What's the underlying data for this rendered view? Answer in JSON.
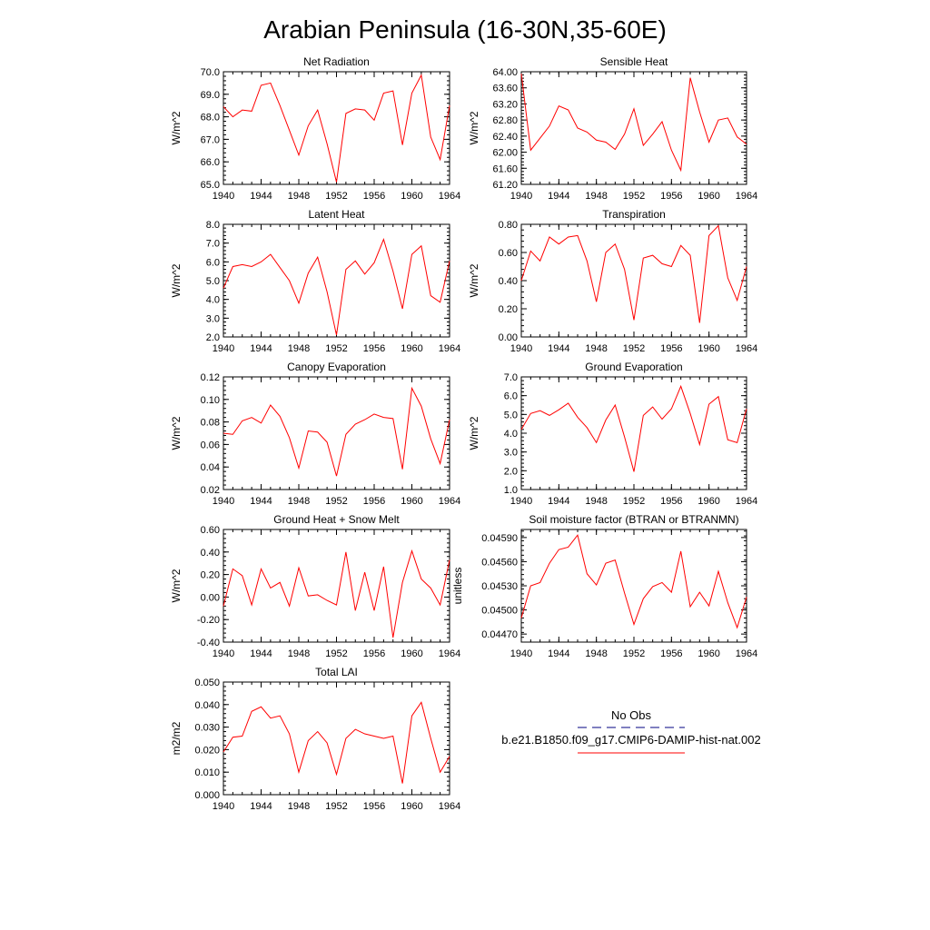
{
  "title": "Arabian Peninsula (16-30N,35-60E)",
  "colors": {
    "series": "#ff0000",
    "obs": "#000080",
    "frame": "#000000"
  },
  "legend": {
    "obs_label": "No Obs",
    "model_label": "b.e21.B1850.f09_g17.CMIP6-DAMIP-hist-nat.002"
  },
  "chart_data": [
    {
      "type": "line",
      "title": "Net Radiation",
      "ylabel": "W/m^2",
      "xlim": [
        1940,
        1964
      ],
      "ylim": [
        65.0,
        70.0
      ],
      "xticks": [
        1940,
        1944,
        1948,
        1952,
        1956,
        1960,
        1964
      ],
      "xtick_labels": [
        "1940",
        "1944",
        "1948",
        "1952",
        "1956",
        "1960",
        "1964"
      ],
      "yticks": [
        65.0,
        66.0,
        67.0,
        68.0,
        69.0,
        70.0
      ],
      "ytick_labels": [
        "65.0",
        "66.0",
        "67.0",
        "68.0",
        "69.0",
        "70.0"
      ],
      "x": [
        1940,
        1941,
        1942,
        1943,
        1944,
        1945,
        1946,
        1947,
        1948,
        1949,
        1950,
        1951,
        1952,
        1953,
        1954,
        1955,
        1956,
        1957,
        1958,
        1959,
        1960,
        1961,
        1962,
        1963,
        1964
      ],
      "y": [
        68.45,
        68.0,
        68.3,
        68.25,
        69.4,
        69.5,
        68.5,
        67.4,
        66.3,
        67.6,
        68.3,
        66.8,
        65.1,
        68.15,
        68.35,
        68.3,
        67.85,
        69.05,
        69.15,
        66.75,
        69.05,
        69.85,
        67.1,
        66.1,
        68.5
      ]
    },
    {
      "type": "line",
      "title": "Sensible Heat",
      "ylabel": "W/m^2",
      "xlim": [
        1940,
        1964
      ],
      "ylim": [
        61.2,
        64.0
      ],
      "xticks": [
        1940,
        1944,
        1948,
        1952,
        1956,
        1960,
        1964
      ],
      "xtick_labels": [
        "1940",
        "1944",
        "1948",
        "1952",
        "1956",
        "1960",
        "1964"
      ],
      "yticks": [
        61.2,
        61.6,
        62.0,
        62.4,
        62.8,
        63.2,
        63.6,
        64.0
      ],
      "ytick_labels": [
        "61.20",
        "61.60",
        "62.00",
        "62.40",
        "62.80",
        "63.20",
        "63.60",
        "64.00"
      ],
      "x": [
        1940,
        1941,
        1942,
        1943,
        1944,
        1945,
        1946,
        1947,
        1948,
        1949,
        1950,
        1951,
        1952,
        1953,
        1954,
        1955,
        1956,
        1957,
        1958,
        1959,
        1960,
        1961,
        1962,
        1963,
        1964
      ],
      "y": [
        63.95,
        62.05,
        62.35,
        62.65,
        63.15,
        63.05,
        62.6,
        62.5,
        62.3,
        62.25,
        62.07,
        62.45,
        63.08,
        62.17,
        62.45,
        62.76,
        62.05,
        61.55,
        63.85,
        63.0,
        62.25,
        62.8,
        62.85,
        62.38,
        62.2
      ]
    },
    {
      "type": "line",
      "title": "Latent Heat",
      "ylabel": "W/m^2",
      "xlim": [
        1940,
        1964
      ],
      "ylim": [
        2.0,
        8.0
      ],
      "xticks": [
        1940,
        1944,
        1948,
        1952,
        1956,
        1960,
        1964
      ],
      "xtick_labels": [
        "1940",
        "1944",
        "1948",
        "1952",
        "1956",
        "1960",
        "1964"
      ],
      "yticks": [
        2.0,
        3.0,
        4.0,
        5.0,
        6.0,
        7.0,
        8.0
      ],
      "ytick_labels": [
        "2.0",
        "3.0",
        "4.0",
        "5.0",
        "6.0",
        "7.0",
        "8.0"
      ],
      "x": [
        1940,
        1941,
        1942,
        1943,
        1944,
        1945,
        1946,
        1947,
        1948,
        1949,
        1950,
        1951,
        1952,
        1953,
        1954,
        1955,
        1956,
        1957,
        1958,
        1959,
        1960,
        1961,
        1962,
        1963,
        1964
      ],
      "y": [
        4.6,
        5.75,
        5.85,
        5.75,
        6.0,
        6.4,
        5.7,
        5.0,
        3.8,
        5.4,
        6.25,
        4.4,
        2.1,
        5.6,
        6.05,
        5.35,
        5.95,
        7.2,
        5.5,
        3.5,
        6.4,
        6.85,
        4.2,
        3.85,
        6.05
      ]
    },
    {
      "type": "line",
      "title": "Transpiration",
      "ylabel": "W/m^2",
      "xlim": [
        1940,
        1964
      ],
      "ylim": [
        0.0,
        0.8
      ],
      "xticks": [
        1940,
        1944,
        1948,
        1952,
        1956,
        1960,
        1964
      ],
      "xtick_labels": [
        "1940",
        "1944",
        "1948",
        "1952",
        "1956",
        "1960",
        "1964"
      ],
      "yticks": [
        0.0,
        0.2,
        0.4,
        0.6,
        0.8
      ],
      "ytick_labels": [
        "0.00",
        "0.20",
        "0.40",
        "0.60",
        "0.80"
      ],
      "x": [
        1940,
        1941,
        1942,
        1943,
        1944,
        1945,
        1946,
        1947,
        1948,
        1949,
        1950,
        1951,
        1952,
        1953,
        1954,
        1955,
        1956,
        1957,
        1958,
        1959,
        1960,
        1961,
        1962,
        1963,
        1964
      ],
      "y": [
        0.4,
        0.61,
        0.54,
        0.71,
        0.66,
        0.71,
        0.72,
        0.54,
        0.25,
        0.6,
        0.66,
        0.48,
        0.12,
        0.56,
        0.58,
        0.52,
        0.5,
        0.65,
        0.58,
        0.1,
        0.72,
        0.79,
        0.42,
        0.26,
        0.5
      ]
    },
    {
      "type": "line",
      "title": "Canopy Evaporation",
      "ylabel": "W/m^2",
      "xlim": [
        1940,
        1964
      ],
      "ylim": [
        0.02,
        0.12
      ],
      "xticks": [
        1940,
        1944,
        1948,
        1952,
        1956,
        1960,
        1964
      ],
      "xtick_labels": [
        "1940",
        "1944",
        "1948",
        "1952",
        "1956",
        "1960",
        "1964"
      ],
      "yticks": [
        0.02,
        0.04,
        0.06,
        0.08,
        0.1,
        0.12
      ],
      "ytick_labels": [
        "0.02",
        "0.04",
        "0.06",
        "0.08",
        "0.10",
        "0.12"
      ],
      "x": [
        1940,
        1941,
        1942,
        1943,
        1944,
        1945,
        1946,
        1947,
        1948,
        1949,
        1950,
        1951,
        1952,
        1953,
        1954,
        1955,
        1956,
        1957,
        1958,
        1959,
        1960,
        1961,
        1962,
        1963,
        1964
      ],
      "y": [
        0.07,
        0.069,
        0.081,
        0.084,
        0.079,
        0.095,
        0.085,
        0.066,
        0.039,
        0.072,
        0.071,
        0.062,
        0.032,
        0.069,
        0.078,
        0.082,
        0.087,
        0.084,
        0.083,
        0.038,
        0.11,
        0.094,
        0.065,
        0.043,
        0.082
      ]
    },
    {
      "type": "line",
      "title": "Ground Evaporation",
      "ylabel": "W/m^2",
      "xlim": [
        1940,
        1964
      ],
      "ylim": [
        1.0,
        7.0
      ],
      "xticks": [
        1940,
        1944,
        1948,
        1952,
        1956,
        1960,
        1964
      ],
      "xtick_labels": [
        "1940",
        "1944",
        "1948",
        "1952",
        "1956",
        "1960",
        "1964"
      ],
      "yticks": [
        1.0,
        2.0,
        3.0,
        4.0,
        5.0,
        6.0,
        7.0
      ],
      "ytick_labels": [
        "1.0",
        "2.0",
        "3.0",
        "4.0",
        "5.0",
        "6.0",
        "7.0"
      ],
      "x": [
        1940,
        1941,
        1942,
        1943,
        1944,
        1945,
        1946,
        1947,
        1948,
        1949,
        1950,
        1951,
        1952,
        1953,
        1954,
        1955,
        1956,
        1957,
        1958,
        1959,
        1960,
        1961,
        1962,
        1963,
        1964
      ],
      "y": [
        4.2,
        5.05,
        5.2,
        4.95,
        5.25,
        5.6,
        4.85,
        4.3,
        3.5,
        4.7,
        5.5,
        3.8,
        1.95,
        4.95,
        5.4,
        4.75,
        5.3,
        6.5,
        5.05,
        3.4,
        5.55,
        5.95,
        3.65,
        3.5,
        5.3
      ]
    },
    {
      "type": "line",
      "title": "Ground Heat + Snow Melt",
      "ylabel": "W/m^2",
      "xlim": [
        1940,
        1964
      ],
      "ylim": [
        -0.4,
        0.6
      ],
      "xticks": [
        1940,
        1944,
        1948,
        1952,
        1956,
        1960,
        1964
      ],
      "xtick_labels": [
        "1940",
        "1944",
        "1948",
        "1952",
        "1956",
        "1960",
        "1964"
      ],
      "yticks": [
        -0.4,
        -0.2,
        0.0,
        0.2,
        0.4,
        0.6
      ],
      "ytick_labels": [
        "-0.40",
        "-0.20",
        "0.00",
        "0.20",
        "0.40",
        "0.60"
      ],
      "x": [
        1940,
        1941,
        1942,
        1943,
        1944,
        1945,
        1946,
        1947,
        1948,
        1949,
        1950,
        1951,
        1952,
        1953,
        1954,
        1955,
        1956,
        1957,
        1958,
        1959,
        1960,
        1961,
        1962,
        1963,
        1964
      ],
      "y": [
        -0.08,
        0.25,
        0.19,
        -0.07,
        0.25,
        0.08,
        0.13,
        -0.08,
        0.26,
        0.01,
        0.02,
        -0.03,
        -0.07,
        0.4,
        -0.12,
        0.22,
        -0.12,
        0.27,
        -0.36,
        0.13,
        0.41,
        0.16,
        0.08,
        -0.07,
        0.33
      ]
    },
    {
      "type": "line",
      "title": "Soil moisture factor (BTRAN or BTRANMN)",
      "ylabel": "unitless",
      "xlim": [
        1940,
        1964
      ],
      "ylim": [
        0.0446,
        0.046
      ],
      "xticks": [
        1940,
        1944,
        1948,
        1952,
        1956,
        1960,
        1964
      ],
      "xtick_labels": [
        "1940",
        "1944",
        "1948",
        "1952",
        "1956",
        "1960",
        "1964"
      ],
      "yticks": [
        0.0447,
        0.045,
        0.0453,
        0.0456,
        0.0459
      ],
      "ytick_labels": [
        "0.04470",
        "0.04500",
        "0.04530",
        "0.04560",
        "0.04590"
      ],
      "x": [
        1940,
        1941,
        1942,
        1943,
        1944,
        1945,
        1946,
        1947,
        1948,
        1949,
        1950,
        1951,
        1952,
        1953,
        1954,
        1955,
        1956,
        1957,
        1958,
        1959,
        1960,
        1961,
        1962,
        1963,
        1964
      ],
      "y": [
        0.0449,
        0.0453,
        0.04534,
        0.04558,
        0.04575,
        0.04578,
        0.04593,
        0.04545,
        0.04531,
        0.04558,
        0.04562,
        0.04521,
        0.04482,
        0.04514,
        0.04529,
        0.04534,
        0.04522,
        0.04573,
        0.04504,
        0.04522,
        0.04505,
        0.04548,
        0.04509,
        0.04478,
        0.04516
      ]
    },
    {
      "type": "line",
      "title": "Total LAI",
      "ylabel": "m2/m2",
      "xlim": [
        1940,
        1964
      ],
      "ylim": [
        0.0,
        0.05
      ],
      "xticks": [
        1940,
        1944,
        1948,
        1952,
        1956,
        1960,
        1964
      ],
      "xtick_labels": [
        "1940",
        "1944",
        "1948",
        "1952",
        "1956",
        "1960",
        "1964"
      ],
      "yticks": [
        0.0,
        0.01,
        0.02,
        0.03,
        0.04,
        0.05
      ],
      "ytick_labels": [
        "0.000",
        "0.010",
        "0.020",
        "0.030",
        "0.040",
        "0.050"
      ],
      "x": [
        1940,
        1941,
        1942,
        1943,
        1944,
        1945,
        1946,
        1947,
        1948,
        1949,
        1950,
        1951,
        1952,
        1953,
        1954,
        1955,
        1956,
        1957,
        1958,
        1959,
        1960,
        1961,
        1962,
        1963,
        1964
      ],
      "y": [
        0.019,
        0.0255,
        0.026,
        0.037,
        0.039,
        0.034,
        0.035,
        0.027,
        0.01,
        0.024,
        0.028,
        0.023,
        0.009,
        0.025,
        0.029,
        0.027,
        0.026,
        0.025,
        0.026,
        0.005,
        0.035,
        0.041,
        0.025,
        0.01,
        0.017
      ]
    }
  ]
}
